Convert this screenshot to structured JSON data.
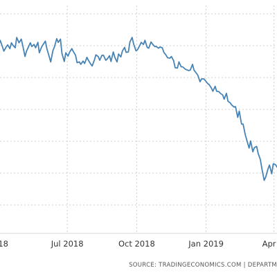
{
  "chart_data": {
    "type": "line",
    "title": "",
    "xlabel": "",
    "ylabel": "",
    "grid": true,
    "line_color": "#4682b4",
    "x_tick_labels": [
      "18",
      "Jul 2018",
      "Oct 2018",
      "Jan 2019",
      "Apr 2"
    ],
    "source": "SOURCE: TRADINGECONOMICS.COM  |  DEPARTM",
    "series": [
      {
        "x": [
          "2018-04-01",
          "2018-04-03",
          "2018-04-05",
          "2018-04-08",
          "2018-04-11",
          "2018-04-13",
          "2018-04-16",
          "2018-04-18",
          "2018-04-20",
          "2018-04-23",
          "2018-04-25",
          "2018-04-28",
          "2018-05-01",
          "2018-05-03",
          "2018-05-06",
          "2018-05-08",
          "2018-05-10",
          "2018-05-13",
          "2018-05-15",
          "2018-05-18",
          "2018-05-20",
          "2018-05-23",
          "2018-05-25",
          "2018-05-28",
          "2018-05-30",
          "2018-06-02",
          "2018-06-04",
          "2018-06-07",
          "2018-06-09",
          "2018-06-12",
          "2018-06-14",
          "2018-06-17",
          "2018-06-19",
          "2018-06-22",
          "2018-06-24",
          "2018-06-27",
          "2018-06-29",
          "2018-07-02",
          "2018-07-04",
          "2018-07-07",
          "2018-07-09",
          "2018-07-12",
          "2018-07-14",
          "2018-07-17",
          "2018-07-19",
          "2018-07-22",
          "2018-07-24",
          "2018-07-27",
          "2018-07-29",
          "2018-08-01",
          "2018-08-03",
          "2018-08-06",
          "2018-08-08",
          "2018-08-11",
          "2018-08-13",
          "2018-08-16",
          "2018-08-18",
          "2018-08-21",
          "2018-08-23",
          "2018-08-26",
          "2018-08-28",
          "2018-08-31",
          "2018-09-02",
          "2018-09-05",
          "2018-09-07",
          "2018-09-10",
          "2018-09-12",
          "2018-09-15",
          "2018-09-17",
          "2018-09-20",
          "2018-09-22",
          "2018-09-25",
          "2018-09-27",
          "2018-09-30",
          "2018-10-02",
          "2018-10-05",
          "2018-10-07",
          "2018-10-10",
          "2018-10-12",
          "2018-10-15",
          "2018-10-17",
          "2018-10-20",
          "2018-10-22",
          "2018-10-25",
          "2018-10-27",
          "2018-10-30",
          "2018-11-01",
          "2018-11-04",
          "2018-11-06",
          "2018-11-09",
          "2018-11-11",
          "2018-11-14",
          "2018-11-16",
          "2018-11-19",
          "2018-11-21",
          "2018-11-24",
          "2018-11-26",
          "2018-11-29",
          "2018-12-01",
          "2018-12-04",
          "2018-12-06",
          "2018-12-09",
          "2018-12-11",
          "2018-12-14",
          "2018-12-16",
          "2018-12-19",
          "2018-12-21",
          "2018-12-24",
          "2018-12-26",
          "2018-12-29",
          "2018-12-31",
          "2019-01-03",
          "2019-01-05",
          "2019-01-08",
          "2019-01-10",
          "2019-01-13",
          "2019-01-15",
          "2019-01-18",
          "2019-01-20",
          "2019-01-23",
          "2019-01-25",
          "2019-01-28",
          "2019-01-30",
          "2019-02-02",
          "2019-02-04",
          "2019-02-07",
          "2019-02-09",
          "2019-02-12",
          "2019-02-14",
          "2019-02-17",
          "2019-02-19",
          "2019-02-22",
          "2019-02-24",
          "2019-02-27",
          "2019-03-01",
          "2019-03-04",
          "2019-03-06",
          "2019-03-09",
          "2019-03-11",
          "2019-03-14",
          "2019-03-16",
          "2019-03-19",
          "2019-03-21",
          "2019-03-24",
          "2019-03-26",
          "2019-03-29",
          "2019-03-31",
          "2019-04-03",
          "2019-04-05"
        ],
        "y": [
          0.62,
          0.76,
          0.66,
          0.5,
          0.6,
          0.65,
          0.56,
          0.7,
          0.64,
          0.58,
          0.83,
          0.7,
          0.79,
          0.63,
          0.37,
          0.5,
          0.58,
          0.7,
          0.61,
          0.66,
          0.58,
          0.71,
          0.46,
          0.6,
          0.66,
          0.74,
          0.56,
          0.37,
          0.24,
          0.51,
          0.6,
          0.8,
          0.71,
          0.79,
          0.44,
          0.25,
          0.46,
          0.38,
          0.47,
          0.56,
          0.49,
          0.4,
          0.22,
          0.24,
          0.18,
          0.26,
          0.2,
          0.35,
          0.28,
          0.19,
          0.14,
          0.29,
          0.41,
          0.37,
          0.28,
          0.4,
          0.4,
          0.28,
          0.31,
          0.39,
          0.25,
          0.48,
          0.35,
          0.24,
          0.43,
          0.36,
          0.5,
          0.59,
          0.47,
          0.48,
          0.72,
          0.83,
          0.67,
          0.51,
          0.53,
          0.63,
          0.71,
          0.66,
          0.76,
          0.59,
          0.57,
          0.72,
          0.67,
          0.61,
          0.61,
          0.57,
          0.6,
          0.58,
          0.47,
          0.4,
          0.34,
          0.33,
          0.37,
          0.27,
          0.1,
          0.09,
          0.24,
          0.12,
          0.12,
          0.07,
          0.05,
          0.03,
          0.04,
          0.18,
          0.04,
          -0.03,
          -0.08,
          -0.24,
          -0.17,
          -0.17,
          -0.21,
          -0.28,
          -0.31,
          -0.39,
          -0.47,
          -0.35,
          -0.47,
          -0.48,
          -0.52,
          -0.56,
          -0.66,
          -0.52,
          -0.71,
          -0.75,
          -0.8,
          -0.85,
          -0.84,
          -1.1,
          -0.95,
          -1.26,
          -1.26,
          -1.52,
          -1.65,
          -1.84,
          -1.67,
          -1.93,
          -1.83,
          -1.8,
          -1.97,
          -2.12,
          -2.34,
          -2.62,
          -2.54,
          -2.35,
          -2.25,
          -2.46,
          -2.22,
          -2.24,
          -2.3
        ]
      }
    ],
    "xlim": [
      "2018-04-01",
      "2019-04-05"
    ],
    "ylim": [
      -3.9,
      1.6
    ]
  }
}
